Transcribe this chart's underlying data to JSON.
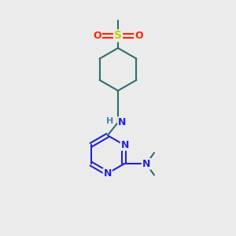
{
  "background_color": "#ebebeb",
  "atom_colors": {
    "N": "#2222dd",
    "O": "#ff2200",
    "S": "#cccc00",
    "C": "#2d6e6e",
    "H": "#4488aa"
  },
  "bond_color": "#2d6e6e",
  "font_size_atoms": 9,
  "fig_size": [
    3.0,
    3.0
  ],
  "dpi": 100
}
